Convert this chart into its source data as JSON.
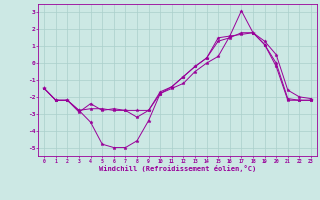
{
  "background_color": "#cce8e4",
  "line_color": "#990099",
  "grid_color": "#aacfcb",
  "xlabel": "Windchill (Refroidissement éolien,°C)",
  "xlim": [
    -0.5,
    23.5
  ],
  "ylim": [
    -5.5,
    3.5
  ],
  "yticks": [
    -5,
    -4,
    -3,
    -2,
    -1,
    0,
    1,
    2,
    3
  ],
  "xticks": [
    0,
    1,
    2,
    3,
    4,
    5,
    6,
    7,
    8,
    9,
    10,
    11,
    12,
    13,
    14,
    15,
    16,
    17,
    18,
    19,
    20,
    21,
    22,
    23
  ],
  "line1_x": [
    0,
    1,
    2,
    3,
    4,
    5,
    6,
    7,
    8,
    9,
    10,
    11,
    12,
    13,
    14,
    15,
    16,
    17,
    18,
    19,
    20,
    21,
    22,
    23
  ],
  "line1_y": [
    -1.5,
    -2.2,
    -2.2,
    -2.8,
    -3.5,
    -4.8,
    -5.0,
    -5.0,
    -4.6,
    -3.4,
    -1.8,
    -1.5,
    -1.2,
    -0.5,
    0.0,
    0.4,
    1.6,
    1.7,
    1.8,
    1.3,
    0.5,
    -1.6,
    -2.0,
    -2.1
  ],
  "line2_x": [
    0,
    1,
    2,
    3,
    4,
    5,
    6,
    7,
    8,
    9,
    10,
    11,
    12,
    13,
    14,
    15,
    16,
    17,
    18,
    19,
    20,
    21,
    22,
    23
  ],
  "line2_y": [
    -1.5,
    -2.2,
    -2.2,
    -2.9,
    -2.4,
    -2.8,
    -2.7,
    -2.8,
    -3.2,
    -2.8,
    -1.7,
    -1.4,
    -0.8,
    -0.2,
    0.3,
    1.5,
    1.6,
    3.1,
    1.8,
    1.1,
    -0.2,
    -2.2,
    -2.2,
    -2.2
  ],
  "line3_x": [
    0,
    1,
    2,
    3,
    4,
    5,
    6,
    7,
    8,
    9,
    10,
    11,
    12,
    13,
    14,
    15,
    16,
    17,
    18,
    19,
    20,
    21,
    22,
    23
  ],
  "line3_y": [
    -1.5,
    -2.2,
    -2.2,
    -2.8,
    -2.7,
    -2.7,
    -2.8,
    -2.8,
    -2.8,
    -2.8,
    -1.8,
    -1.4,
    -0.8,
    -0.2,
    0.3,
    1.3,
    1.5,
    1.8,
    1.8,
    1.1,
    0.0,
    -2.1,
    -2.2,
    -2.2
  ],
  "figwidth": 3.2,
  "figheight": 2.0,
  "dpi": 100
}
